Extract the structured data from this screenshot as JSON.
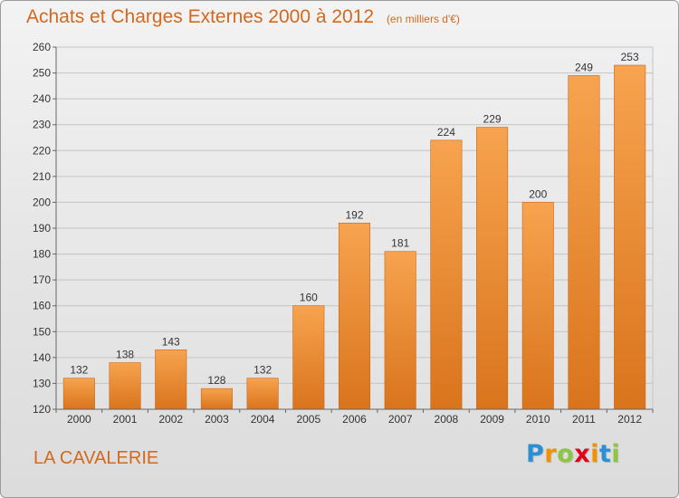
{
  "header": {
    "title": "Achats et Charges Externes 2000 à 2012",
    "subtitle": "(en milliers d'€)"
  },
  "footer": {
    "commune": "LA CAVALERIE",
    "brand_letters": [
      "P",
      "r",
      "o",
      "x",
      "i",
      "t",
      "i"
    ],
    "brand_colors": [
      "#2b8fd6",
      "#f39200",
      "#8dc63f",
      "#e2001a",
      "#f39200",
      "#2b8fd6",
      "#8dc63f"
    ]
  },
  "chart_data": {
    "type": "bar",
    "categories": [
      "2000",
      "2001",
      "2002",
      "2003",
      "2004",
      "2005",
      "2006",
      "2007",
      "2008",
      "2009",
      "2010",
      "2011",
      "2012"
    ],
    "values": [
      132,
      138,
      143,
      128,
      132,
      160,
      192,
      181,
      224,
      229,
      200,
      249,
      253
    ],
    "ylim": [
      120,
      260
    ],
    "yticks": [
      120,
      130,
      140,
      150,
      160,
      170,
      180,
      190,
      200,
      210,
      220,
      230,
      240,
      250,
      260
    ],
    "grid": true,
    "bar_color_top": "#f7a34f",
    "bar_color_bottom": "#d9741c",
    "text_color": "#d2691e"
  }
}
